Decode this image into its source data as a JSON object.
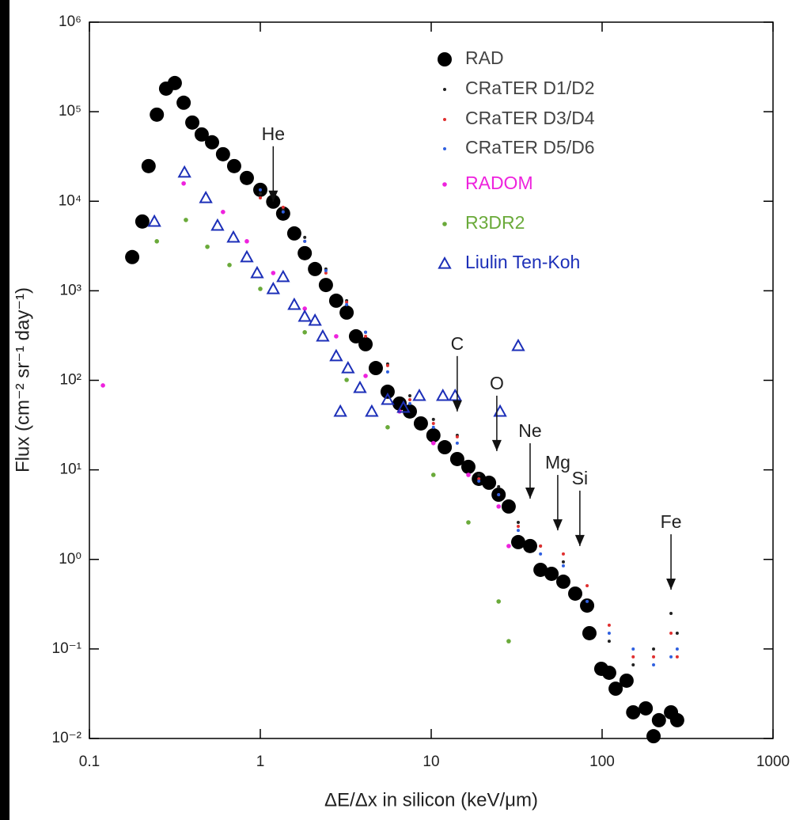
{
  "chart_data": {
    "type": "scatter",
    "xlabel": "ΔE/Δx in silicon (keV/μm)",
    "ylabel": "Flux (cm⁻² sr⁻¹ day⁻¹)",
    "xscale": "log",
    "yscale": "log",
    "xlim": [
      0.1,
      1000
    ],
    "ylim": [
      0.01,
      1000000
    ],
    "xticks": [
      0.1,
      1,
      10,
      100,
      1000
    ],
    "yticks": [
      {
        "value": 0.01,
        "label": "10⁻²"
      },
      {
        "value": 0.1,
        "label": "10⁻¹"
      },
      {
        "value": 1,
        "label": "10⁰"
      },
      {
        "value": 10,
        "label": "10¹"
      },
      {
        "value": 100,
        "label": "10²"
      },
      {
        "value": 1000,
        "label": "10³"
      },
      {
        "value": 10000,
        "label": "10⁴"
      },
      {
        "value": 100000,
        "label": "10⁵"
      },
      {
        "value": 1000000,
        "label": "10⁶"
      }
    ],
    "legend": "upper right",
    "series": [
      {
        "name": "RAD",
        "color": "#000000",
        "label_color": "#444444",
        "marker": "circle-large",
        "x": [
          0.178,
          0.204,
          0.222,
          0.248,
          0.281,
          0.316,
          0.356,
          0.4,
          0.454,
          0.522,
          0.605,
          0.703,
          0.834,
          1.0,
          1.19,
          1.36,
          1.58,
          1.82,
          2.09,
          2.42,
          2.78,
          3.2,
          3.63,
          4.13,
          4.74,
          5.56,
          6.53,
          7.5,
          8.7,
          10.3,
          12,
          14.2,
          16.5,
          19,
          21.8,
          24.8,
          28.4,
          32.3,
          37.9,
          43.6,
          50.6,
          59.3,
          69.6,
          81.7,
          84.3,
          98.9,
          110,
          120,
          139,
          152,
          180,
          200,
          215,
          253,
          275
        ],
        "values": [
          2380,
          5940,
          24700,
          92700,
          181000,
          209000,
          126000,
          75600,
          55700,
          45500,
          33500,
          24700,
          18200,
          13400,
          9890,
          7280,
          4370,
          2630,
          1750,
          1160,
          775,
          571,
          310,
          253,
          137,
          74.6,
          55,
          44.9,
          33,
          24.3,
          17.9,
          13.2,
          10.8,
          7.94,
          7.18,
          5.28,
          3.9,
          1.56,
          1.41,
          0.764,
          0.69,
          0.564,
          0.415,
          0.305,
          0.15,
          0.06,
          0.0542,
          0.036,
          0.0442,
          0.0196,
          0.0217,
          0.0106,
          0.016,
          0.0196,
          0.016
        ]
      },
      {
        "name": "CRaTER D1/D2",
        "color": "#222222",
        "label_color": "#444444",
        "marker": "dot",
        "x": [
          1.0,
          1.36,
          1.82,
          2.42,
          3.2,
          4.13,
          5.56,
          7.5,
          10.3,
          14.2,
          19,
          24.8,
          32.3,
          43.6,
          59.3,
          81.7,
          110,
          152,
          200,
          253,
          275
        ],
        "values": [
          12100,
          8050,
          3950,
          1750,
          775,
          344,
          152,
          67.3,
          36.6,
          24.3,
          8.79,
          6.49,
          2.59,
          1.41,
          0.938,
          0.339,
          0.122,
          0.0664,
          0.0998,
          0.249,
          0.15
        ]
      },
      {
        "name": "CRaTER D3/D4",
        "color": "#e03030",
        "label_color": "#444444",
        "marker": "dot",
        "x": [
          1.0,
          1.36,
          1.82,
          2.42,
          3.2,
          4.13,
          5.56,
          7.5,
          10.3,
          14.2,
          19,
          24.8,
          32.3,
          43.6,
          59.3,
          81.7,
          110,
          152,
          200,
          253,
          275
        ],
        "values": [
          10900,
          8570,
          3570,
          1580,
          745,
          310,
          146,
          60.8,
          33,
          23.4,
          7.94,
          5.28,
          2.34,
          1.41,
          1.15,
          0.508,
          0.184,
          0.0815,
          0.0815,
          0.15,
          0.0815
        ]
      },
      {
        "name": "CRaTER D5/D6",
        "color": "#3060e0",
        "label_color": "#444444",
        "marker": "dot",
        "x": [
          1.0,
          1.36,
          1.82,
          2.42,
          3.2,
          4.13,
          5.56,
          7.5,
          10.3,
          14.2,
          19,
          24.8,
          32.3,
          43.6,
          59.3,
          81.7,
          110,
          152,
          200,
          253,
          275
        ],
        "values": [
          13400,
          7590,
          3570,
          1680,
          700,
          344,
          124,
          55,
          29.9,
          19.9,
          7.48,
          5.28,
          2.11,
          1.15,
          0.847,
          0.339,
          0.15,
          0.0998,
          0.0664,
          0.0815,
          0.0998
        ]
      },
      {
        "name": "RADOM",
        "color": "#ee22dd",
        "label_color": "#ee22dd",
        "marker": "dot-large",
        "x": [
          0.12,
          0.356,
          0.605,
          0.834,
          1.19,
          1.82,
          2.78,
          4.13,
          6.53,
          10.3,
          16.5,
          24.8,
          28.4
        ],
        "values": [
          87.7,
          15800,
          7590,
          3570,
          1580,
          632,
          310,
          112,
          44.9,
          19.9,
          8.79,
          3.9,
          1.41
        ]
      },
      {
        "name": "R3DR2",
        "color": "#6aaa3a",
        "label_color": "#6aaa3a",
        "marker": "dot-large",
        "x": [
          0.248,
          0.367,
          0.49,
          0.66,
          1.0,
          1.82,
          3.2,
          5.56,
          10.3,
          16.5,
          24.8,
          28.4
        ],
        "values": [
          3570,
          6180,
          3100,
          1940,
          1050,
          344,
          101,
          29.9,
          8.79,
          2.59,
          0.339,
          0.122
        ]
      },
      {
        "name": "Liulin Ten-Koh",
        "color": "#1c2fb8",
        "label_color": "#1c2fb8",
        "marker": "triangle",
        "x": [
          0.24,
          0.36,
          0.48,
          0.562,
          0.696,
          0.834,
          0.958,
          1.19,
          1.36,
          1.58,
          1.82,
          2.09,
          2.32,
          2.78,
          2.94,
          3.26,
          3.83,
          4.49,
          5.56,
          6.88,
          8.52,
          11.7,
          13.8,
          25.3,
          32.3
        ],
        "values": [
          5940,
          21000,
          10900,
          5360,
          3950,
          2380,
          1580,
          1050,
          1430,
          700,
          516,
          466,
          310,
          187,
          44.9,
          137,
          82.6,
          44.9,
          60.8,
          49.7,
          67.3,
          67.3,
          67.3,
          44.9,
          243
        ]
      }
    ],
    "annotations": [
      {
        "text": "He",
        "x": 1.19,
        "y": 9890
      },
      {
        "text": "C",
        "x": 14.2,
        "y": 44.9
      },
      {
        "text": "O",
        "x": 24.2,
        "y": 16.2
      },
      {
        "text": "Ne",
        "x": 37.9,
        "y": 4.77
      },
      {
        "text": "Mg",
        "x": 55,
        "y": 2.11
      },
      {
        "text": "Si",
        "x": 74.1,
        "y": 1.41
      },
      {
        "text": "Fe",
        "x": 253,
        "y": 0.459
      }
    ]
  }
}
